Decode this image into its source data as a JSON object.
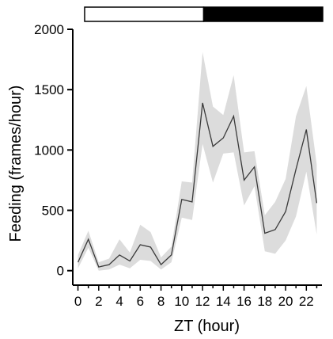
{
  "chart_data": {
    "type": "line",
    "title": "",
    "xlabel": "ZT (hour)",
    "ylabel": "Feeding (frames/hour)",
    "xlim": [
      -0.5,
      23.5
    ],
    "ylim": [
      -120,
      2000
    ],
    "x_ticks": [
      0,
      2,
      4,
      6,
      8,
      10,
      12,
      14,
      16,
      18,
      20,
      22
    ],
    "x_tick_labels": [
      "0",
      "2",
      "4",
      "6",
      "8",
      "10",
      "12",
      "14",
      "16",
      "18",
      "20",
      "22"
    ],
    "y_ticks": [
      0,
      500,
      1000,
      1500,
      2000
    ],
    "y_tick_labels": [
      "0",
      "500",
      "1000",
      "1500",
      "2000"
    ],
    "grid": false,
    "light_dark_bar": [
      {
        "phase": "light",
        "start": 0,
        "end": 12,
        "color": "#ffffff"
      },
      {
        "phase": "dark",
        "start": 12,
        "end": 24,
        "color": "#000000"
      }
    ],
    "series": [
      {
        "x": [
          0,
          1,
          2,
          3,
          4,
          5,
          6,
          7,
          8,
          9,
          10,
          11,
          12,
          13,
          14,
          15,
          16,
          17,
          18,
          19,
          20,
          21,
          22,
          23
        ],
        "values": [
          70,
          260,
          30,
          50,
          130,
          80,
          215,
          195,
          50,
          130,
          590,
          570,
          1390,
          1030,
          1100,
          1280,
          750,
          860,
          310,
          340,
          490,
          840,
          1170,
          560
        ],
        "upper": [
          130,
          330,
          70,
          100,
          260,
          150,
          380,
          320,
          110,
          200,
          740,
          730,
          1810,
          1360,
          1290,
          1620,
          980,
          990,
          460,
          570,
          760,
          1280,
          1530,
          880
        ],
        "lower": [
          20,
          190,
          0,
          10,
          50,
          20,
          90,
          80,
          10,
          70,
          440,
          420,
          1050,
          730,
          970,
          980,
          540,
          700,
          160,
          140,
          250,
          450,
          820,
          300
        ],
        "line_color": "#3a3a3a",
        "band_color": "#dcdcdc"
      }
    ]
  }
}
